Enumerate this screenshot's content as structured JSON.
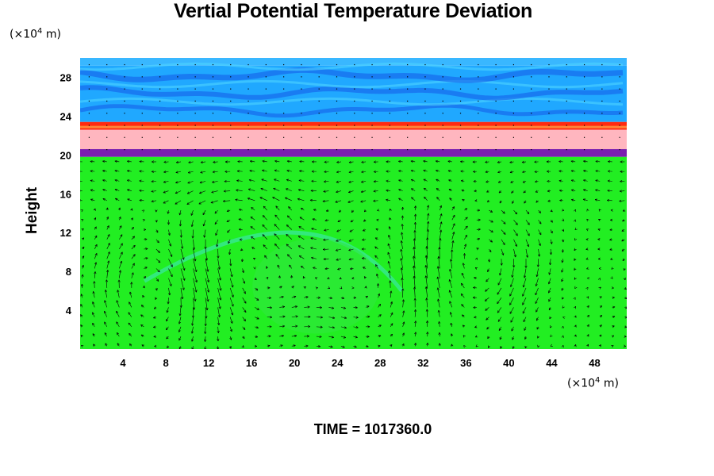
{
  "chart_data": {
    "type": "heatmap",
    "title": "Vertial Potential Temperature Deviation",
    "ylabel": "Height",
    "xlabel": "",
    "y_unit_label": "(×10",
    "y_unit_exp": "4",
    "y_unit_tail": " m)",
    "x_unit_label": "(×10",
    "x_unit_exp": "4",
    "x_unit_tail": " m)",
    "xlim": [
      0,
      51
    ],
    "ylim": [
      0,
      30
    ],
    "xticks": [
      4,
      8,
      12,
      16,
      20,
      24,
      28,
      32,
      36,
      40,
      44,
      48
    ],
    "yticks": [
      4,
      8,
      12,
      16,
      20,
      24,
      28
    ],
    "layers": [
      {
        "from": 29.2,
        "to": 30.0,
        "color": "#39b7ff"
      },
      {
        "from": 23.4,
        "to": 29.2,
        "color": "#20a8ff"
      },
      {
        "from": 22.6,
        "to": 23.4,
        "color": "#ff2a10"
      },
      {
        "from": 20.6,
        "to": 22.6,
        "color": "#ffb6bf"
      },
      {
        "from": 19.8,
        "to": 20.6,
        "color": "#7a1fb0"
      },
      {
        "from": 0.0,
        "to": 19.8,
        "color": "#22ee22"
      }
    ],
    "background_field_color": "#22ee22",
    "vector_color": "#000000",
    "circulation_cells": [
      {
        "center": [
          22,
          6.5
        ],
        "direction": "counterclockwise"
      }
    ],
    "time_label": "TIME = 1017360.0"
  }
}
